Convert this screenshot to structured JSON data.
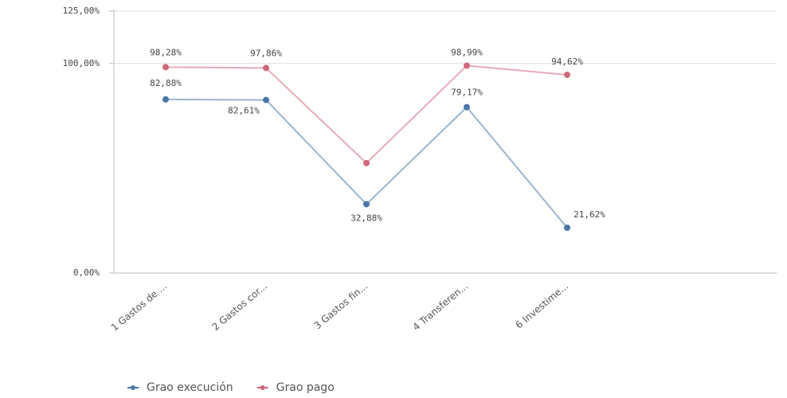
{
  "chart_data": {
    "type": "line",
    "categories": [
      "1 Gastos de ...",
      "2 Gastos cor...",
      "3 Gastos fin...",
      "4 Transferen...",
      "6 Investime..."
    ],
    "series": [
      {
        "name": "Grao execución",
        "color": "#4a77a8",
        "values": [
          82.88,
          82.61,
          32.88,
          79.17,
          21.62
        ],
        "value_labels": [
          "82,88%",
          "82,61%",
          "32,88%",
          "79,17%",
          "21,62%"
        ]
      },
      {
        "name": "Grao pago",
        "color": "#d0687b",
        "values": [
          98.28,
          97.86,
          52.5,
          98.99,
          94.62
        ],
        "value_labels": [
          "98,28%",
          "97,86%",
          null,
          "98,99%",
          "94,62%"
        ]
      }
    ],
    "ylim": [
      0,
      125
    ],
    "yticks": [
      {
        "value": 0,
        "label": "0,00%"
      },
      {
        "value": 100,
        "label": "100,00%"
      },
      {
        "value": 125,
        "label": "125,00%"
      }
    ],
    "grid": true,
    "legend": "bottom"
  }
}
